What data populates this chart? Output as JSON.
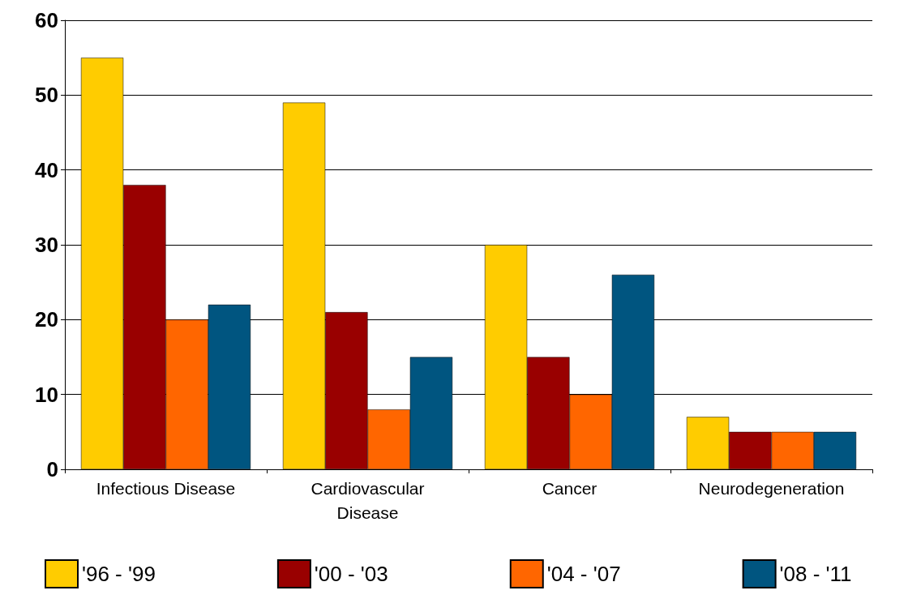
{
  "chart_data": {
    "type": "bar",
    "categories": [
      "Infectious Disease",
      "Cardiovascular\nDisease",
      "Cancer",
      "Neurodegeneration"
    ],
    "series": [
      {
        "name": "'96 - '99",
        "color": "#ffcc00",
        "values": [
          55,
          49,
          30,
          7
        ]
      },
      {
        "name": "'00 - '03",
        "color": "#990000",
        "values": [
          38,
          21,
          15,
          5
        ]
      },
      {
        "name": "'04 - '07",
        "color": "#ff6600",
        "values": [
          20,
          8,
          10,
          5
        ]
      },
      {
        "name": "'08 - '11",
        "color": "#005580",
        "values": [
          22,
          15,
          26,
          5
        ]
      }
    ],
    "ylim": [
      0,
      60
    ],
    "yticks": [
      0,
      10,
      20,
      30,
      40,
      50,
      60
    ],
    "grid": "y",
    "legend": "bottom"
  }
}
